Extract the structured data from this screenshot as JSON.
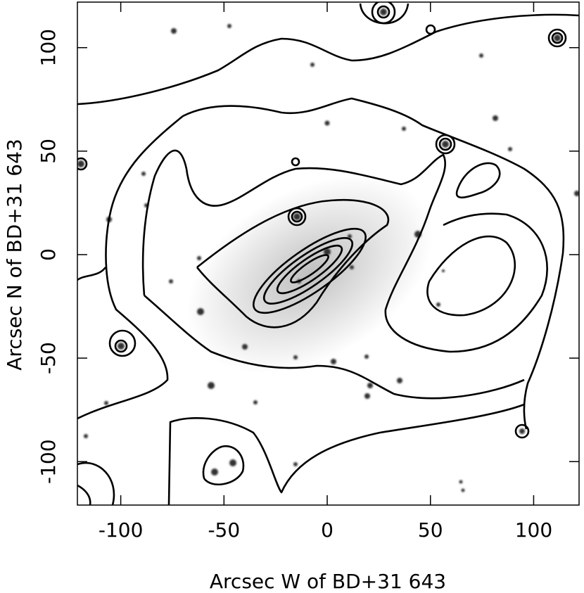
{
  "chart_data": {
    "type": "contour",
    "xlabel": "Arcsec W of BD+31 643",
    "ylabel": "Arcsec N of BD+31 643",
    "xlim": [
      -121,
      122
    ],
    "ylim": [
      -121,
      122
    ],
    "xticks": [
      -100,
      -50,
      0,
      50,
      100
    ],
    "yticks": [
      -100,
      -50,
      0,
      50,
      100
    ]
  }
}
